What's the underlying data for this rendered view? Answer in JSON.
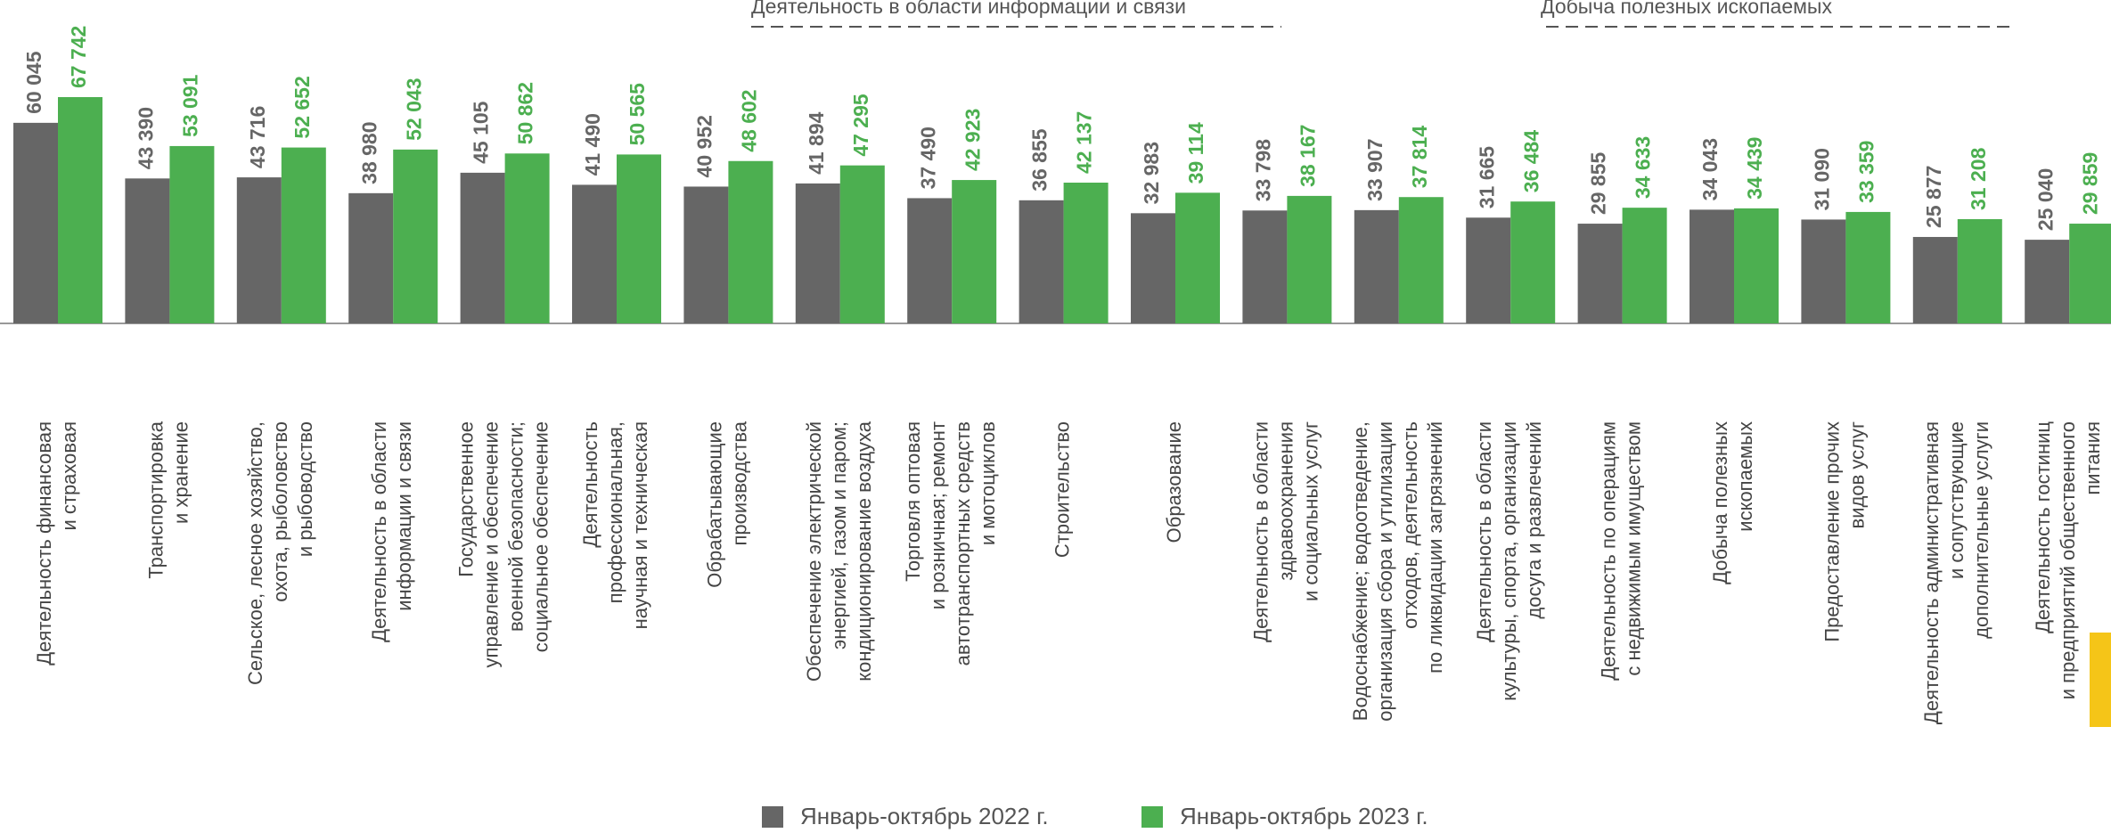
{
  "chart_data": {
    "type": "bar",
    "annotations": [
      "Деятельность в области информации и связи",
      "Добыча полезных ископаемых"
    ],
    "categories": [
      [
        "Деятельность финансовая",
        "и страховая"
      ],
      [
        "Транспортировка",
        "и хранение"
      ],
      [
        "Сельское, лесное хозяйство,",
        "охота, рыболовство",
        "и рыбоводство"
      ],
      [
        "Деятельность в области",
        "информации и связи"
      ],
      [
        "Государственное",
        "управление и обеспечение",
        "военной безопасности;",
        "социальное обеспечение"
      ],
      [
        "Деятельность",
        "профессиональная,",
        "научная и техническая"
      ],
      [
        "Обрабатывающие",
        "производства"
      ],
      [
        "Обеспечение электрической",
        "энергией, газом и паром;",
        "кондиционирование воздуха"
      ],
      [
        "Торговля оптовая",
        "и розничная; ремонт",
        "автотранспортных средств",
        "и мотоциклов"
      ],
      [
        "Строительство"
      ],
      [
        "Образование"
      ],
      [
        "Деятельность в области",
        "здравоохранения",
        "и социальных услуг"
      ],
      [
        "Водоснабжение; водоотведение,",
        "организация сбора и утилизации",
        "отходов, деятельность",
        "по ликвидации загрязнений"
      ],
      [
        "Деятельность в области",
        "культуры, спорта, организации",
        "досуга и развлечений"
      ],
      [
        "Деятельность по операциям",
        "с недвижимым имуществом"
      ],
      [
        "Добыча полезных",
        "ископаемых"
      ],
      [
        "Предоставление прочих",
        "видов услуг"
      ],
      [
        "Деятельность административная",
        "и сопутствующие",
        "дополнительные услуги"
      ],
      [
        "Деятельность гостиниц",
        "и предприятий общественного",
        "питания"
      ]
    ],
    "series": [
      {
        "name": "Январь-октябрь 2022 г.",
        "color": "#666666",
        "values": [
          60045,
          43390,
          43716,
          38980,
          45105,
          41490,
          40952,
          41894,
          37490,
          36855,
          32983,
          33798,
          33907,
          31665,
          29855,
          34043,
          31090,
          25877,
          25040
        ],
        "value_labels": [
          "60 045",
          "43 390",
          "43 716",
          "38 980",
          "45 105",
          "41 490",
          "40 952",
          "41 894",
          "37 490",
          "36 855",
          "32 983",
          "33 798",
          "33 907",
          "31 665",
          "29 855",
          "34 043",
          "31 090",
          "25 877",
          "25 040"
        ]
      },
      {
        "name": "Январь-октябрь 2023 г.",
        "color": "#4caf50",
        "values": [
          67742,
          53091,
          52652,
          52043,
          50862,
          50565,
          48602,
          47295,
          42923,
          42137,
          39114,
          38167,
          37814,
          36484,
          34633,
          34439,
          33359,
          31208,
          29859
        ],
        "value_labels": [
          "67 742",
          "53 091",
          "52 652",
          "52 043",
          "50 862",
          "50 565",
          "48 602",
          "47 295",
          "42 923",
          "42 137",
          "39 114",
          "38 167",
          "37 814",
          "36 484",
          "34 633",
          "34 439",
          "33 359",
          "31 208",
          "29 859"
        ]
      }
    ]
  }
}
